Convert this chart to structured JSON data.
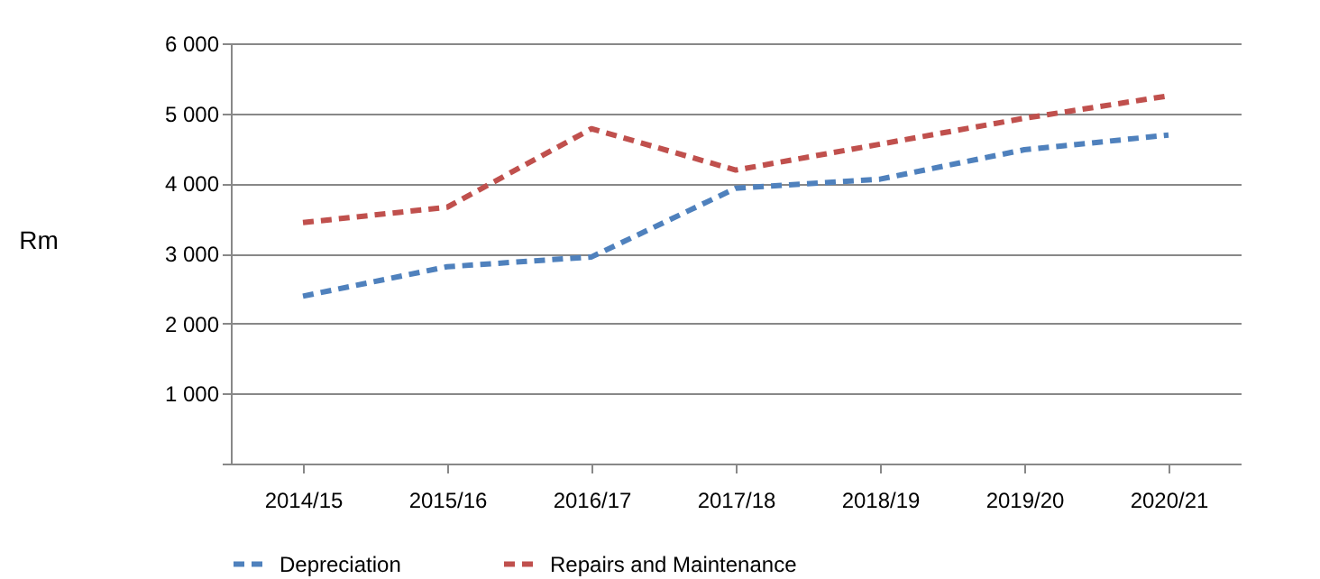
{
  "chart_data": {
    "type": "line",
    "ylabel": "Rm",
    "categories": [
      "2014/15",
      "2015/16",
      "2016/17",
      "2017/18",
      "2018/19",
      "2019/20",
      "2020/21"
    ],
    "series": [
      {
        "name": "Depreciation",
        "color": "#4f81bd",
        "line_style": "dashed",
        "values": [
          2390,
          2810,
          2950,
          3930,
          4060,
          4480,
          4690
        ]
      },
      {
        "name": "Repairs and Maintenance",
        "color": "#c0504d",
        "line_style": "dashed",
        "values": [
          3440,
          3660,
          4780,
          4190,
          4560,
          4930,
          5250
        ]
      }
    ],
    "ylim": [
      0,
      6000
    ],
    "yticks": [
      {
        "value": 0,
        "label": null
      },
      {
        "value": 1000,
        "label": "1 000"
      },
      {
        "value": 2000,
        "label": "2 000"
      },
      {
        "value": 3000,
        "label": "3 000"
      },
      {
        "value": 4000,
        "label": "4 000"
      },
      {
        "value": 5000,
        "label": "5 000"
      },
      {
        "value": 6000,
        "label": "6 000"
      }
    ],
    "grid": "y",
    "legend": "bottom",
    "marker": "none"
  }
}
